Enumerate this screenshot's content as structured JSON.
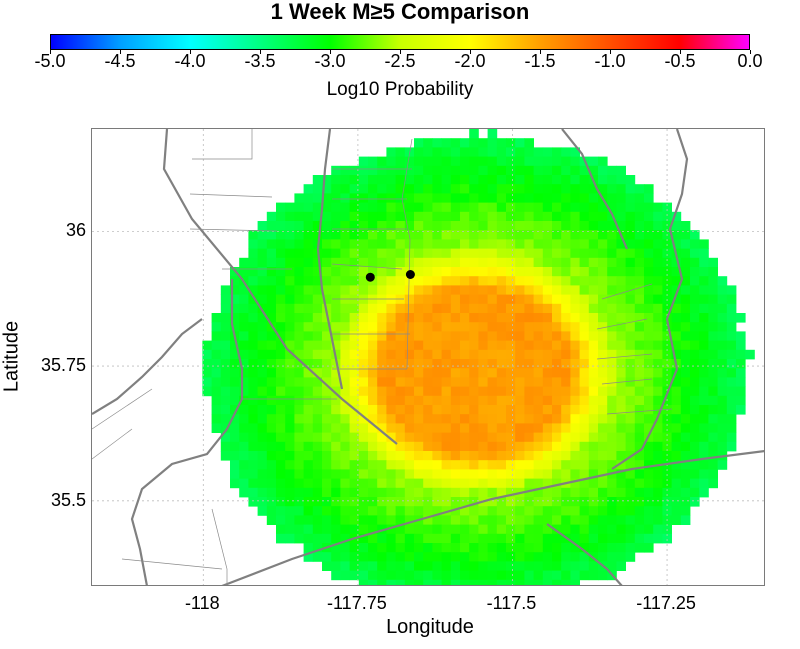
{
  "title": "1 Week M≥5 Comparison",
  "colorbar": {
    "label": "Log10 Probability",
    "min": -5.0,
    "max": 0.0,
    "ticks": [
      "-5.0",
      "-4.5",
      "-4.0",
      "-3.5",
      "-3.0",
      "-2.5",
      "-2.0",
      "-1.5",
      "-1.0",
      "-0.5",
      "0.0"
    ],
    "colors": [
      "#0000ff",
      "#00a0ff",
      "#00ffff",
      "#00ff80",
      "#00ff00",
      "#c8ff00",
      "#ffff00",
      "#ffa000",
      "#ff5000",
      "#ff0000",
      "#ff00ff"
    ]
  },
  "map": {
    "x_label": "Longitude",
    "y_label": "Latitude",
    "lon_range": [
      -118.18,
      -117.09
    ],
    "lat_range": [
      35.34,
      36.19
    ],
    "x_ticks": [
      "-118",
      "-117.75",
      "-117.5",
      "-117.25"
    ],
    "x_tick_values": [
      -118.0,
      -117.75,
      -117.5,
      -117.25
    ],
    "y_ticks": [
      "36",
      "35.75",
      "35.5"
    ],
    "y_tick_values": [
      36.0,
      35.75,
      35.5
    ],
    "gridlines": true,
    "probability_field": {
      "center_lon": -117.56,
      "center_lat": 35.74,
      "peak_log10_probability": -1.4,
      "outer_log10_probability": -3.3,
      "footprint_radius_deg": 0.43
    },
    "events": [
      {
        "lon": -117.73,
        "lat": 35.915
      },
      {
        "lon": -117.665,
        "lat": 35.92
      }
    ]
  }
}
